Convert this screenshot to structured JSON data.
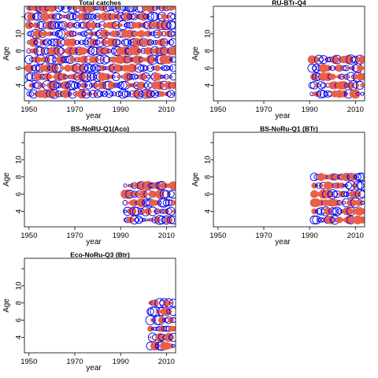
{
  "chart_data": [
    {
      "type": "scatter",
      "title": "Total catches",
      "xlabel": "year",
      "ylabel": "Age",
      "xticks": [
        1950,
        1970,
        1990,
        2010
      ],
      "yticks": [
        4,
        6,
        8,
        10
      ],
      "xlim": [
        1948,
        2014
      ],
      "ylim": [
        2.2,
        13.2
      ],
      "x_range": [
        1950,
        2013
      ],
      "ages": [
        3,
        4,
        5,
        6,
        7,
        8,
        9,
        10,
        11,
        12,
        13
      ]
    },
    {
      "type": "scatter",
      "title": "RU-BTr-Q4",
      "xlabel": "year",
      "ylabel": "Age",
      "xticks": [
        1950,
        1970,
        1990,
        2010
      ],
      "yticks": [
        4,
        6,
        8,
        10
      ],
      "xlim": [
        1948,
        2014
      ],
      "ylim": [
        2.2,
        13.2
      ],
      "x_range": [
        1991,
        2013
      ],
      "ages": [
        3,
        4,
        5,
        6,
        7
      ]
    },
    {
      "type": "scatter",
      "title": "BS-NoRU-Q1(Aco)",
      "xlabel": "year",
      "ylabel": "Age",
      "xticks": [
        1950,
        1970,
        1990,
        2010
      ],
      "yticks": [
        4,
        6,
        8,
        10
      ],
      "xlim": [
        1948,
        2014
      ],
      "ylim": [
        2.2,
        13.2
      ],
      "x_range": [
        1992,
        2013
      ],
      "ages": [
        3,
        4,
        5,
        6,
        7
      ]
    },
    {
      "type": "scatter",
      "title": "BS-NoRu-Q1 (BTr)",
      "xlabel": "year",
      "ylabel": "Age",
      "xticks": [
        1950,
        1970,
        1990,
        2010
      ],
      "yticks": [
        4,
        6,
        8,
        10
      ],
      "xlim": [
        1948,
        2014
      ],
      "ylim": [
        2.2,
        13.2
      ],
      "x_range": [
        1992,
        2013
      ],
      "ages": [
        3,
        4,
        5,
        6,
        7,
        8
      ]
    },
    {
      "type": "scatter",
      "title": "Eco-NoRu-Q3 (Btr)",
      "xlabel": "year",
      "ylabel": "Age",
      "xticks": [
        1950,
        1970,
        1990,
        2010
      ],
      "yticks": [
        4,
        6,
        8,
        10
      ],
      "xlim": [
        1948,
        2014
      ],
      "ylim": [
        2.2,
        13.2
      ],
      "x_range": [
        2003,
        2013
      ],
      "ages": [
        3,
        4,
        5,
        6,
        7,
        8
      ]
    }
  ],
  "colors": {
    "positive": "#e8604a",
    "negative": "#0000ee",
    "frame": "#000000"
  }
}
